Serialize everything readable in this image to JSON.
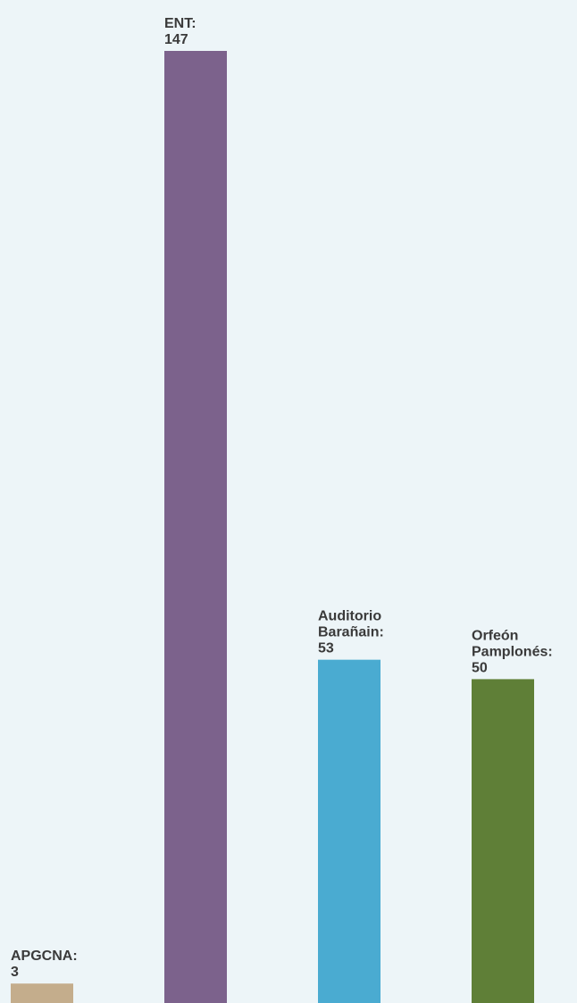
{
  "chart_data": {
    "type": "bar",
    "categories": [
      "APGCNA",
      "ENT",
      "Auditorio Barañain",
      "Orfeón Pamplonés"
    ],
    "values": [
      3,
      147,
      53,
      50
    ],
    "label_lines": [
      [
        "APGCNA:",
        "3"
      ],
      [
        "ENT:",
        "147"
      ],
      [
        "Auditorio",
        "Barañain:",
        "53"
      ],
      [
        "Orfeón",
        "Pamplonés:",
        "50"
      ]
    ],
    "colors": [
      "#c4ad8c",
      "#7c628c",
      "#4aabd1",
      "#5f7f37"
    ],
    "ylim": [
      0,
      147
    ],
    "grid": false,
    "legend": "none",
    "title": "",
    "xlabel": "",
    "ylabel": ""
  }
}
